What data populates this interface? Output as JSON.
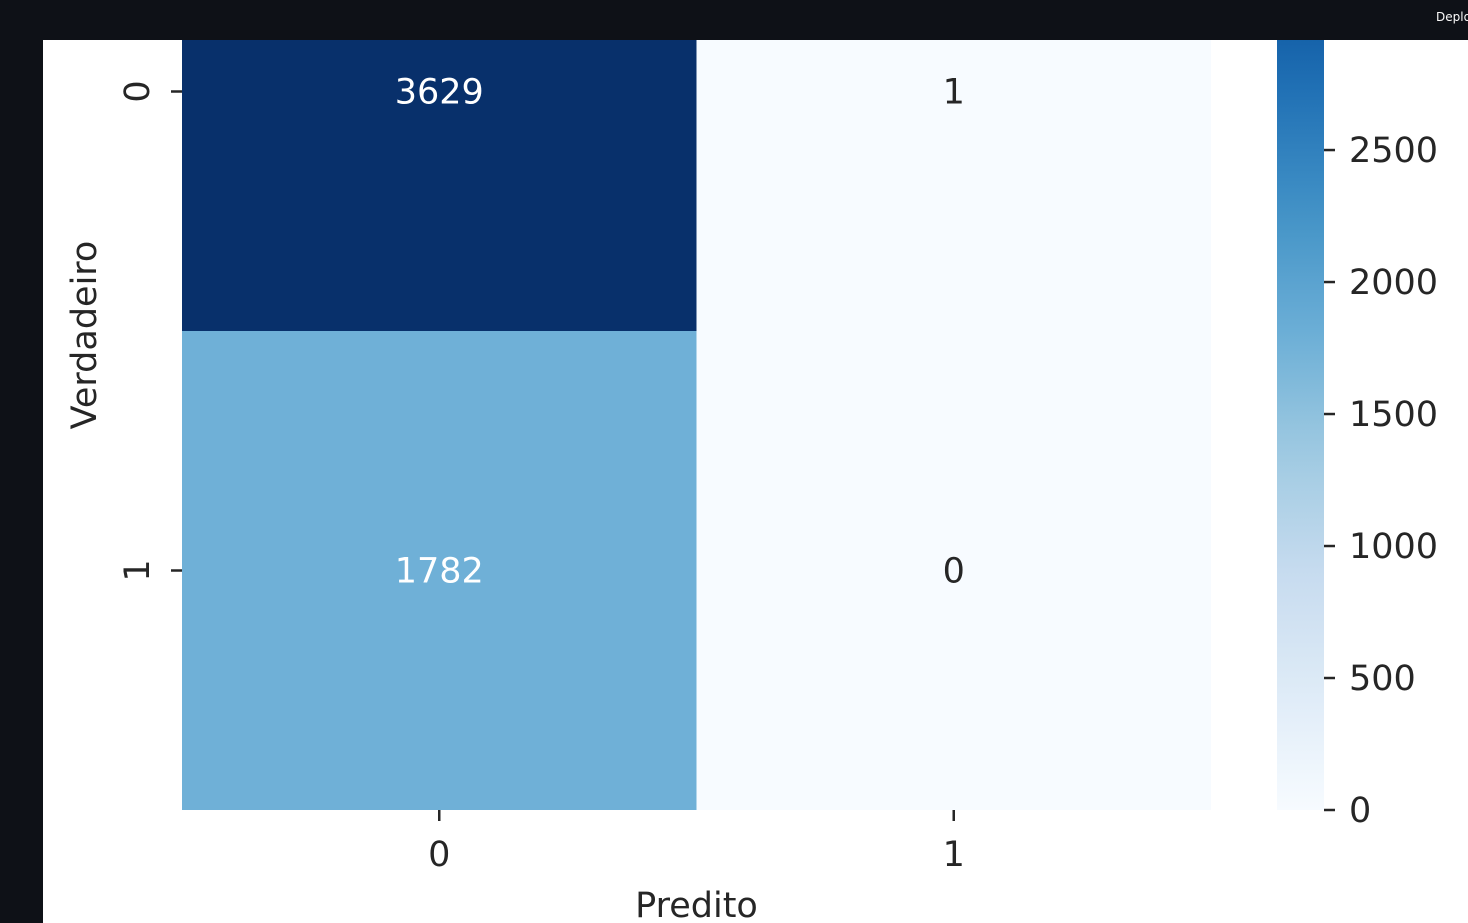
{
  "header": {
    "deploy_label": "Deploy"
  },
  "chart_data": {
    "type": "heatmap",
    "rows": [
      "0",
      "1"
    ],
    "columns": [
      "0",
      "1"
    ],
    "values": [
      [
        3629,
        1
      ],
      [
        1782,
        0
      ]
    ],
    "xlabel": "Predito",
    "ylabel": "Verdadeiro",
    "colormap": "Blues",
    "colorbar": {
      "ticks": [
        0,
        500,
        1000,
        1500,
        2000,
        2500
      ],
      "range": [
        0,
        3629
      ]
    },
    "annotations": true
  }
}
